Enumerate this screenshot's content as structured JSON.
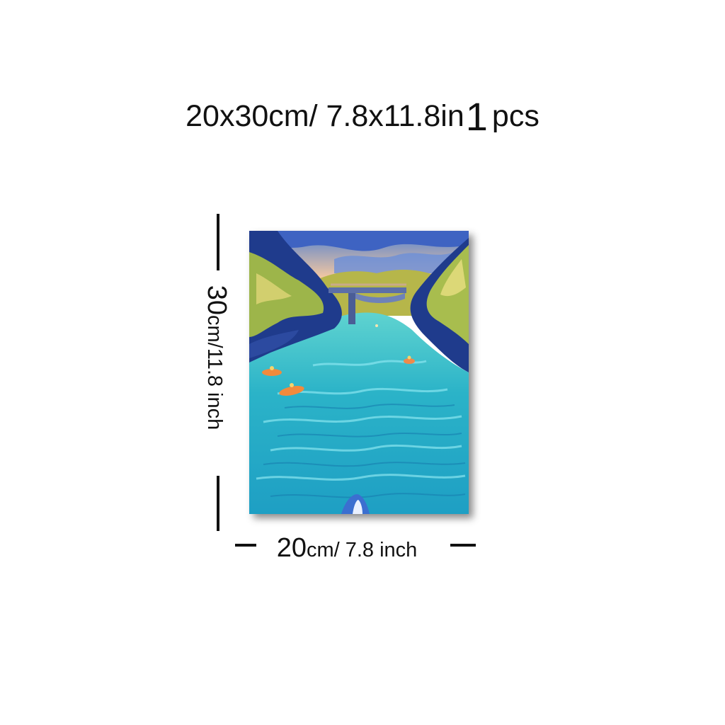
{
  "title": {
    "size_text": "20x30cm/ 7.8x11.8in",
    "qty": "1",
    "qty_unit": "pcs"
  },
  "height_dimension": {
    "value": "30",
    "unit_text": "cm/11.8 inch"
  },
  "width_dimension": {
    "value": "20",
    "unit_text": "cm/ 7.8 inch"
  },
  "colors": {
    "text": "#111111",
    "water": "#2bb3c8",
    "foliage": "#9db54a",
    "sky": "#f1b58c"
  },
  "artwork": {
    "subject-icon": "river-bridge-painting"
  }
}
